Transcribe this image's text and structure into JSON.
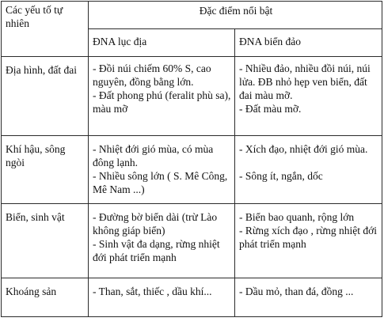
{
  "table": {
    "header": {
      "factor": "Các yếu tố tự nhiên",
      "features": "Đặc điểm nổi bật",
      "mainland": "ĐNA lục địa",
      "island": "ĐNA biển đảo"
    },
    "rows": [
      {
        "factor": "Địa hình, đất đai",
        "mainland": "- Đồi núi chiếm 60% S, cao nguyên, đồng bằng lớn.\n- Đất phong phú (feralit phù sa), màu mỡ",
        "island": "- Nhiều đảo, nhiều đồi núi, núi lửa. ĐB nhỏ hẹp ven biển, đất đai màu mỡ.\n- Đất màu mỡ."
      },
      {
        "factor": "Khí hậu, sông ngòi",
        "mainland": "- Nhiệt đới gió mùa, có mùa đông lạnh.\n- Nhiều sông lớn ( S. Mê Công, Mê Nam ...)",
        "island": "- Xích đạo, nhiệt đới gió mùa.\n\n- Sông ít, ngắn, dốc"
      },
      {
        "factor": "Biển, sinh vật",
        "mainland": "- Đường bờ biển dài (trừ Lào không giáp biển)\n- Sinh vật đa dạng, rừng nhiệt đới phát triển mạnh",
        "island": "- Biển bao quanh, rộng lớn\n- Rừng xích đạo , rừng nhiệt đới phát triển mạnh"
      },
      {
        "factor": "Khoáng sản",
        "mainland": "- Than, sắt, thiếc , dầu khí...",
        "island": "- Dầu mỏ, than đá, đồng ..."
      }
    ]
  }
}
